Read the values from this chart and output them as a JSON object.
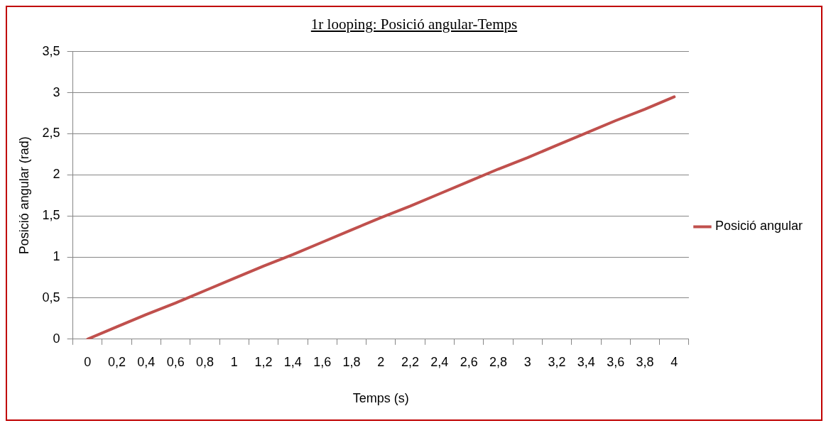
{
  "chart_data": {
    "type": "line",
    "title": "1r looping: Posició angular-Temps",
    "xlabel": "Temps (s)",
    "ylabel": "Posició angular (rad)",
    "categories": [
      "0",
      "0,2",
      "0,4",
      "0,6",
      "0,8",
      "1",
      "1,2",
      "1,4",
      "1,6",
      "1,8",
      "2",
      "2,2",
      "2,4",
      "2,6",
      "2,8",
      "3",
      "3,2",
      "3,4",
      "3,6",
      "3,8",
      "4"
    ],
    "series": [
      {
        "name": "Posició angular",
        "color": "#c0504d",
        "values": [
          0,
          0.15,
          0.3,
          0.44,
          0.59,
          0.74,
          0.89,
          1.03,
          1.18,
          1.33,
          1.48,
          1.62,
          1.77,
          1.92,
          2.07,
          2.21,
          2.36,
          2.51,
          2.66,
          2.8,
          2.95
        ]
      }
    ],
    "ylim": [
      0,
      3.5
    ],
    "yticks": [
      0,
      {
        "value": 0.5,
        "label": "0,5"
      },
      1,
      {
        "value": 1.5,
        "label": "1,5"
      },
      2,
      {
        "value": 2.5,
        "label": "2,5"
      },
      3,
      {
        "value": 3.5,
        "label": "3,5"
      }
    ],
    "grid": "y",
    "legend": "right",
    "marker": "none",
    "line_style": "solid"
  }
}
